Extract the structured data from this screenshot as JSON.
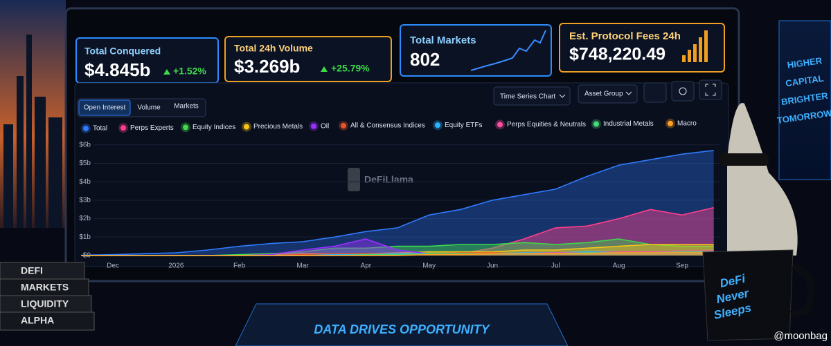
{
  "cards": [
    {
      "label": "Total Conquered",
      "value": "$4.845b",
      "change": "+1.52%"
    },
    {
      "label": "Total 24h Volume",
      "value": "$3.269b",
      "change": "+25.79%"
    },
    {
      "label": "Total Markets",
      "value": "802"
    },
    {
      "label": "Est. Protocol Fees 24h",
      "value": "$748,220.49"
    }
  ],
  "tabs": [
    "Open Interest",
    "Volume",
    "Markets"
  ],
  "controls": [
    "Time Series Chart",
    "Asset Group"
  ],
  "watermark": "DeFiLlama",
  "chart_data": {
    "type": "area",
    "categories": [
      null,
      "Dec",
      null,
      "2026",
      null,
      "Feb",
      null,
      "Mar",
      null,
      "Apr",
      null,
      "May",
      null,
      "Jun",
      null,
      "Jul",
      null,
      "Aug",
      null,
      "Sep",
      null
    ],
    "ylim": [
      0,
      6.2
    ],
    "yticks": [
      {
        "value": 0,
        "label": "$0"
      },
      {
        "value": 1,
        "label": "$1b"
      },
      {
        "value": 2,
        "label": "$2b"
      },
      {
        "value": 3,
        "label": "$3b"
      },
      {
        "value": 4,
        "label": "$4b"
      },
      {
        "value": 5,
        "label": "$5b"
      },
      {
        "value": 6,
        "label": "$6b"
      }
    ],
    "grid": true,
    "series": [
      {
        "name": "Total",
        "color": "#2f7bff",
        "values": [
          0.02,
          0.05,
          0.1,
          0.15,
          0.3,
          0.5,
          0.65,
          0.75,
          1.0,
          1.3,
          1.5,
          2.2,
          2.5,
          3.0,
          3.3,
          3.6,
          4.3,
          4.9,
          5.2,
          5.5,
          5.7
        ]
      },
      {
        "name": "Perps Experts",
        "color": "#ff3f8a",
        "values": [
          0,
          0,
          0,
          0,
          0,
          0,
          0,
          0,
          0,
          0,
          0,
          0.05,
          0.1,
          0.4,
          0.9,
          1.5,
          1.6,
          2.0,
          2.5,
          2.2,
          2.6
        ]
      },
      {
        "name": "Equity Indices",
        "color": "#3fd94a",
        "values": [
          0,
          0,
          0,
          0,
          0,
          0.05,
          0.1,
          0.2,
          0.4,
          0.4,
          0.5,
          0.5,
          0.6,
          0.6,
          0.7,
          0.6,
          0.7,
          0.9,
          0.6,
          0.5,
          0.5
        ]
      },
      {
        "name": "Precious Metals",
        "color": "#f5c518",
        "values": [
          0,
          0,
          0,
          0,
          0,
          0,
          0.05,
          0.1,
          0.1,
          0.1,
          0.15,
          0.2,
          0.2,
          0.2,
          0.3,
          0.3,
          0.4,
          0.5,
          0.6,
          0.6,
          0.6
        ]
      },
      {
        "name": "Oil",
        "color": "#9b30ff",
        "values": [
          0,
          0,
          0,
          0,
          0,
          0,
          0.05,
          0.3,
          0.5,
          0.9,
          0.3,
          0.1,
          0.1,
          0.1,
          0.1,
          0.1,
          0.1,
          0.1,
          0.1,
          0.1,
          0.1
        ]
      },
      {
        "name": "All & Consensus Indices",
        "color": "#e8542a",
        "values": [
          0,
          0,
          0,
          0,
          0,
          0,
          0,
          0.05,
          0.1,
          0.1,
          0.1,
          0.1,
          0.15,
          0.15,
          0.1,
          0.1,
          0.15,
          0.2,
          0.2,
          0.15,
          0.15
        ]
      },
      {
        "name": "Equity ETFs",
        "color": "#2ab4ff",
        "values": [
          0,
          0,
          0,
          0,
          0,
          0,
          0,
          0,
          0.05,
          0.05,
          0.1,
          0.1,
          0.1,
          0.1,
          0.15,
          0.15,
          0.2,
          0.2,
          0.2,
          0.2,
          0.2
        ]
      },
      {
        "name": "Perps Equities & Neutrals",
        "color": "#ff4fa0",
        "values": [
          0,
          0,
          0,
          0,
          0,
          0,
          0,
          0,
          0,
          0,
          0.05,
          0.05,
          0.1,
          0.1,
          0.1,
          0.15,
          0.15,
          0.2,
          0.2,
          0.25,
          0.25
        ]
      },
      {
        "name": "Industrial Metals",
        "color": "#4ad97a",
        "values": [
          0,
          0,
          0,
          0,
          0,
          0,
          0,
          0,
          0,
          0.05,
          0.05,
          0.1,
          0.1,
          0.1,
          0.1,
          0.1,
          0.15,
          0.15,
          0.15,
          0.2,
          0.2
        ]
      },
      {
        "name": "Macro",
        "color": "#ffa020",
        "values": [
          0,
          0,
          0,
          0,
          0,
          0,
          0,
          0,
          0,
          0,
          0,
          0.05,
          0.05,
          0.1,
          0.1,
          0.1,
          0.1,
          0.15,
          0.15,
          0.15,
          0.15
        ]
      }
    ]
  },
  "decor": {
    "screen_text": [
      "HIGHER",
      "CAPITAL",
      "BRIGHTER",
      "TOMORROW"
    ],
    "books": [
      "DEFI",
      "MARKETS",
      "LIQUIDITY",
      "ALPHA"
    ],
    "mug": [
      "DeFi",
      "Never",
      "Sleeps"
    ],
    "banner": "DATA DRIVES OPPORTUNITY",
    "credit": "@moonbag"
  }
}
